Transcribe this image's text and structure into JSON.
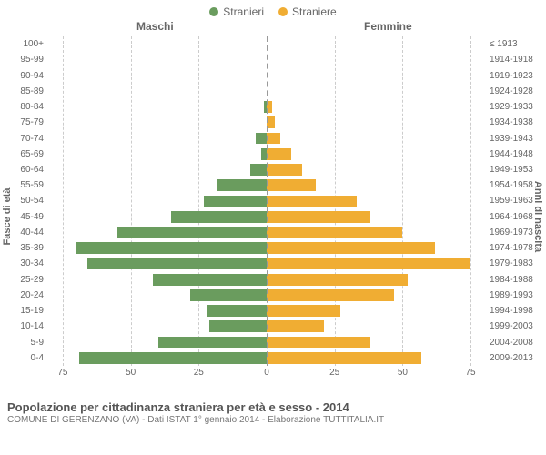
{
  "chart": {
    "type": "population-pyramid",
    "legend": {
      "male": {
        "label": "Stranieri",
        "color": "#6a9c5e"
      },
      "female": {
        "label": "Straniere",
        "color": "#f0ad33"
      }
    },
    "headers": {
      "left": "Maschi",
      "right": "Femmine"
    },
    "y_axis_left_label": "Fasce di età",
    "y_axis_right_label": "Anni di nascita",
    "x_ticks": [
      75,
      50,
      25,
      0,
      25,
      50,
      75
    ],
    "x_max": 80,
    "grid_color": "#cccccc",
    "centerline_color": "#999999",
    "background_color": "#ffffff",
    "bar_height_pct": 74,
    "rows": [
      {
        "age": "100+",
        "birth": "≤ 1913",
        "male": 0,
        "female": 0
      },
      {
        "age": "95-99",
        "birth": "1914-1918",
        "male": 0,
        "female": 0
      },
      {
        "age": "90-94",
        "birth": "1919-1923",
        "male": 0,
        "female": 0
      },
      {
        "age": "85-89",
        "birth": "1924-1928",
        "male": 0,
        "female": 0
      },
      {
        "age": "80-84",
        "birth": "1929-1933",
        "male": 1,
        "female": 2
      },
      {
        "age": "75-79",
        "birth": "1934-1938",
        "male": 0,
        "female": 3
      },
      {
        "age": "70-74",
        "birth": "1939-1943",
        "male": 4,
        "female": 5
      },
      {
        "age": "65-69",
        "birth": "1944-1948",
        "male": 2,
        "female": 9
      },
      {
        "age": "60-64",
        "birth": "1949-1953",
        "male": 6,
        "female": 13
      },
      {
        "age": "55-59",
        "birth": "1954-1958",
        "male": 18,
        "female": 18
      },
      {
        "age": "50-54",
        "birth": "1959-1963",
        "male": 23,
        "female": 33
      },
      {
        "age": "45-49",
        "birth": "1964-1968",
        "male": 35,
        "female": 38
      },
      {
        "age": "40-44",
        "birth": "1969-1973",
        "male": 55,
        "female": 50
      },
      {
        "age": "35-39",
        "birth": "1974-1978",
        "male": 70,
        "female": 62
      },
      {
        "age": "30-34",
        "birth": "1979-1983",
        "male": 66,
        "female": 75
      },
      {
        "age": "25-29",
        "birth": "1984-1988",
        "male": 42,
        "female": 52
      },
      {
        "age": "20-24",
        "birth": "1989-1993",
        "male": 28,
        "female": 47
      },
      {
        "age": "15-19",
        "birth": "1994-1998",
        "male": 22,
        "female": 27
      },
      {
        "age": "10-14",
        "birth": "1999-2003",
        "male": 21,
        "female": 21
      },
      {
        "age": "5-9",
        "birth": "2004-2008",
        "male": 40,
        "female": 38
      },
      {
        "age": "0-4",
        "birth": "2009-2013",
        "male": 69,
        "female": 57
      }
    ]
  },
  "footer": {
    "title": "Popolazione per cittadinanza straniera per età e sesso - 2014",
    "subtitle": "COMUNE DI GERENZANO (VA) - Dati ISTAT 1° gennaio 2014 - Elaborazione TUTTITALIA.IT"
  }
}
